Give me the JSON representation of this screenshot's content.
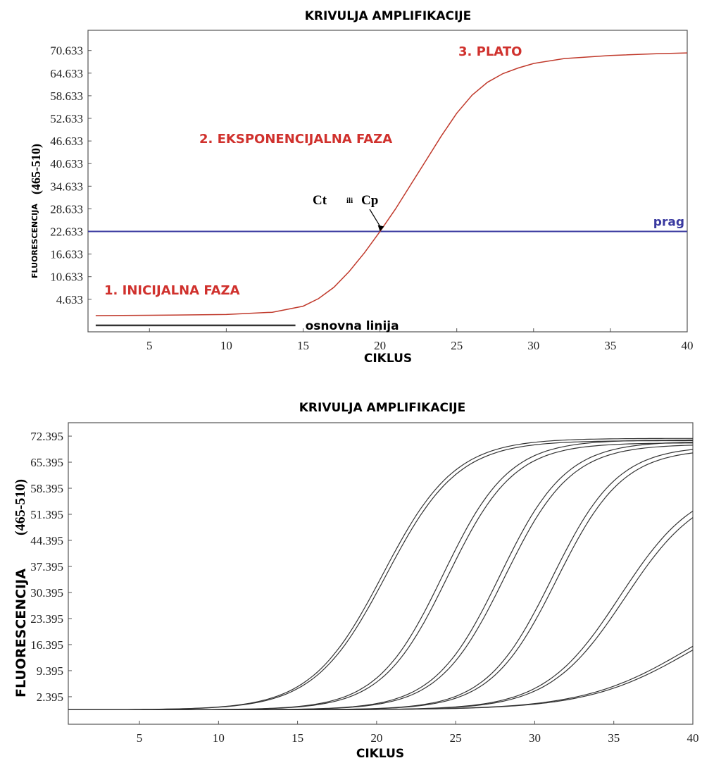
{
  "chart_data": [
    {
      "type": "line",
      "title": "KRIVULJA AMPLIFIKACIJE",
      "xlabel": "CIKLUS",
      "ylabel_main": "FLUORESCENCIJA",
      "ylabel_units": "(465-510)",
      "xlim": [
        1,
        40
      ],
      "ylim": [
        -4,
        76
      ],
      "x_ticks": [
        5,
        10,
        15,
        20,
        25,
        30,
        35,
        40
      ],
      "y_ticks": [
        4.633,
        10.633,
        16.633,
        22.633,
        28.633,
        34.633,
        40.633,
        46.633,
        52.633,
        58.633,
        64.633,
        70.633
      ],
      "y_tick_labels": [
        "4.633",
        "10.633",
        "16.633",
        "22.633",
        "28.633",
        "34.633",
        "40.633",
        "46.633",
        "52.633",
        "58.633",
        "64.633",
        "70.633"
      ],
      "series": [
        {
          "color": "#c0392b",
          "x": [
            1.5,
            5,
            10,
            13,
            15,
            16,
            17,
            18,
            19,
            20,
            21,
            22,
            23,
            24,
            25,
            26,
            27,
            28,
            29,
            30,
            32,
            35,
            38,
            40
          ],
          "y": [
            0.3,
            0.4,
            0.6,
            1.2,
            2.8,
            4.8,
            7.8,
            12.0,
            17.0,
            22.6,
            28.5,
            35.0,
            41.5,
            48.0,
            54.0,
            58.8,
            62.2,
            64.5,
            66.0,
            67.2,
            68.5,
            69.3,
            69.8,
            70.0
          ]
        }
      ],
      "threshold": {
        "value": 22.633,
        "label": "prag",
        "color": "#3a3aa0"
      },
      "baseline": {
        "x": [
          1.5,
          14.5
        ],
        "y": -2.3,
        "label": "osnovna linija"
      },
      "annotations": {
        "phase1": "1. INICIJALNA FAZA",
        "phase2": "2. EKSPONENCIJALNA FAZA",
        "phase3": "3. PLATO",
        "ct_left": "Ct",
        "ct_mid": "ili",
        "ct_right": "Cp",
        "ct_point": [
          20,
          22.633
        ]
      },
      "annotation_color": "#d0312d"
    },
    {
      "type": "line",
      "title": "KRIVULJA AMPLIFIKACIJE",
      "xlabel": "CIKLUS",
      "ylabel_main": "FLUORESCENCIJA",
      "ylabel_units": "(465-510)",
      "xlim": [
        0.5,
        40
      ],
      "ylim": [
        -5,
        76
      ],
      "x_ticks": [
        5,
        10,
        15,
        20,
        25,
        30,
        35,
        40
      ],
      "y_ticks": [
        2.395,
        9.395,
        16.395,
        23.395,
        30.395,
        37.395,
        44.395,
        51.395,
        58.395,
        65.395,
        72.395
      ],
      "y_tick_labels": [
        "2.395",
        "9.395",
        "16.395",
        "23.395",
        "30.395",
        "37.395",
        "44.395",
        "51.395",
        "58.395",
        "65.395",
        "72.395"
      ],
      "curve_color": "#333333",
      "series": [
        {
          "midpoint": 20.4,
          "max": 71.8,
          "steepness": 0.44
        },
        {
          "midpoint": 20.6,
          "max": 71.2,
          "steepness": 0.44
        },
        {
          "midpoint": 24.2,
          "max": 71.4,
          "steepness": 0.48
        },
        {
          "midpoint": 24.5,
          "max": 70.6,
          "steepness": 0.48
        },
        {
          "midpoint": 27.8,
          "max": 71.0,
          "steepness": 0.48
        },
        {
          "midpoint": 28.1,
          "max": 70.2,
          "steepness": 0.48
        },
        {
          "midpoint": 31.1,
          "max": 69.8,
          "steepness": 0.48
        },
        {
          "midpoint": 31.4,
          "max": 69.0,
          "steepness": 0.48
        },
        {
          "midpoint": 35.4,
          "max": 60.0,
          "steepness": 0.42
        },
        {
          "midpoint": 35.7,
          "max": 59.0,
          "steepness": 0.42
        },
        {
          "midpoint": 39.8,
          "max": 32.0,
          "steepness": 0.3
        },
        {
          "midpoint": 40.1,
          "max": 31.5,
          "steepness": 0.3
        }
      ],
      "baseline_level": -1.1
    }
  ]
}
